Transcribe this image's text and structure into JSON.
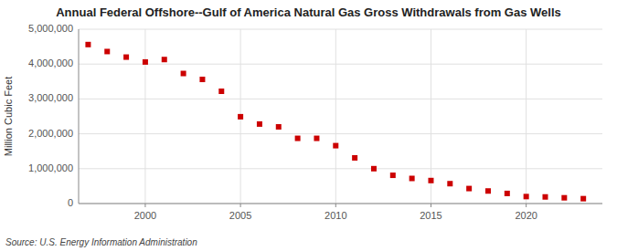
{
  "chart_data": {
    "type": "scatter",
    "title": "Annual Federal Offshore--Gulf of America Natural Gas Gross Withdrawals from Gas Wells",
    "y_label": "Million Cubic Feet",
    "annotations": [
      "Source: U.S. Energy Information Administration"
    ],
    "x": [
      1997,
      1998,
      1999,
      2000,
      2001,
      2002,
      2003,
      2004,
      2005,
      2006,
      2007,
      2008,
      2009,
      2010,
      2011,
      2012,
      2013,
      2014,
      2015,
      2016,
      2017,
      2018,
      2019,
      2020,
      2021,
      2022,
      2023
    ],
    "values": [
      4560000,
      4360000,
      4200000,
      4060000,
      4130000,
      3730000,
      3560000,
      3220000,
      2490000,
      2280000,
      2200000,
      1870000,
      1870000,
      1660000,
      1310000,
      1000000,
      810000,
      720000,
      660000,
      570000,
      430000,
      360000,
      290000,
      200000,
      190000,
      165000,
      140000
    ],
    "color": "#cc0000",
    "marker": "square",
    "grid": true,
    "xlim": [
      1996.5,
      2024
    ],
    "xticks": [
      2000,
      2005,
      2010,
      2015,
      2020
    ],
    "ylim": [
      0,
      5000000
    ],
    "yticks": [
      0,
      {
        "value": 1000000,
        "label": "1,000,000"
      },
      {
        "value": 2000000,
        "label": "2,000,000"
      },
      {
        "value": 3000000,
        "label": "3,000,000"
      },
      {
        "value": 4000000,
        "label": "4,000,000"
      },
      {
        "value": 5000000,
        "label": "5,000,000"
      }
    ]
  }
}
